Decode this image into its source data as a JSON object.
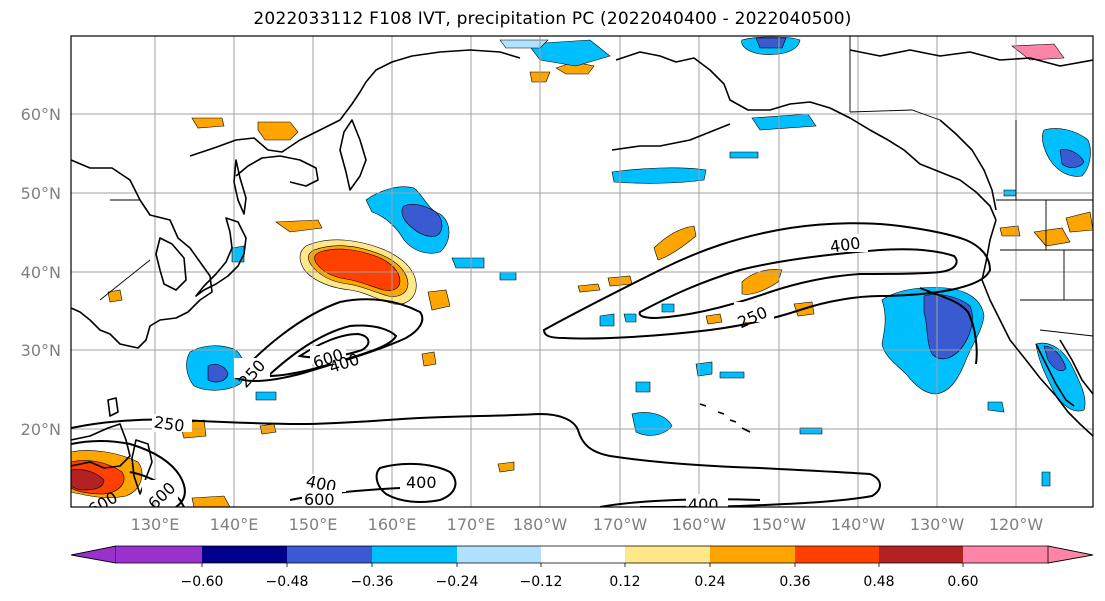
{
  "title": "2022033112 F108 IVT, precipitation PC (2022040400 - 2022040500)",
  "lat_labels": [
    "60°N",
    "50°N",
    "40°N",
    "30°N",
    "20°N"
  ],
  "lon_labels": [
    "130°E",
    "140°E",
    "150°E",
    "160°E",
    "170°E",
    "180°W",
    "170°W",
    "160°W",
    "150°W",
    "140°W",
    "130°W",
    "120°W"
  ],
  "ivt_contour_labels": [
    "400",
    "250",
    "600",
    "400",
    "250",
    "250",
    "600",
    "400",
    "400",
    "600",
    "400",
    "600"
  ],
  "colorbar": {
    "ticks": [
      "−0.60",
      "−0.48",
      "−0.36",
      "−0.24",
      "−0.12",
      "0.12",
      "0.24",
      "0.36",
      "0.48",
      "0.60"
    ],
    "colors": [
      "#9932CC",
      "#00008B",
      "#3A5AD1",
      "#00BFFF",
      "#B0E2FF",
      "#FFFFFF",
      "#FFE88A",
      "#FFA500",
      "#FF4000",
      "#B22222",
      "#FF85A8"
    ]
  },
  "colors": {
    "positive_light": "#FFE88A",
    "positive_mid": "#FFA500",
    "positive_strong": "#FF4000",
    "positive_max": "#B22222",
    "negative_light": "#B0E2FF",
    "negative_mid": "#00BFFF",
    "negative_strong": "#3A5AD1",
    "ivt_contour": "#000000",
    "grid": "#A0A0A0"
  }
}
